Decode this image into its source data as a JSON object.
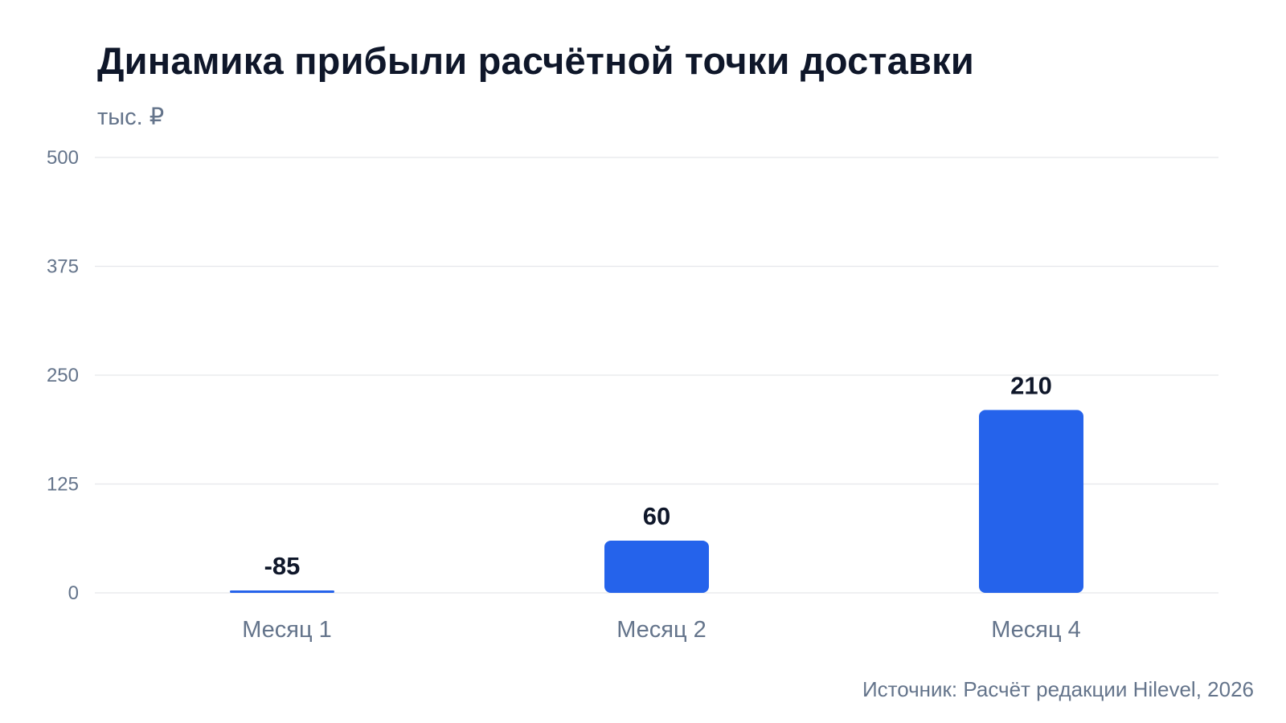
{
  "title": "Динамика прибыли расчётной точки доставки",
  "unit_label": "тыс. ₽",
  "source": "Источник: Расчёт редакции Hilevel, 2026",
  "colors": {
    "bar": "#2563eb",
    "grid": "#e5e7eb",
    "text": "#0f172a",
    "muted": "#64748b"
  },
  "chart_data": {
    "type": "bar",
    "categories": [
      "Месяц 1",
      "Месяц 2",
      "Месяц 4"
    ],
    "values": [
      -85,
      60,
      210
    ],
    "data_labels": [
      "-85",
      "60",
      "210"
    ],
    "ylabel": "тыс. ₽",
    "ylim": [
      0,
      500
    ],
    "yticks": [
      0,
      125,
      250,
      375,
      500
    ],
    "grid": true,
    "legend": "none"
  }
}
